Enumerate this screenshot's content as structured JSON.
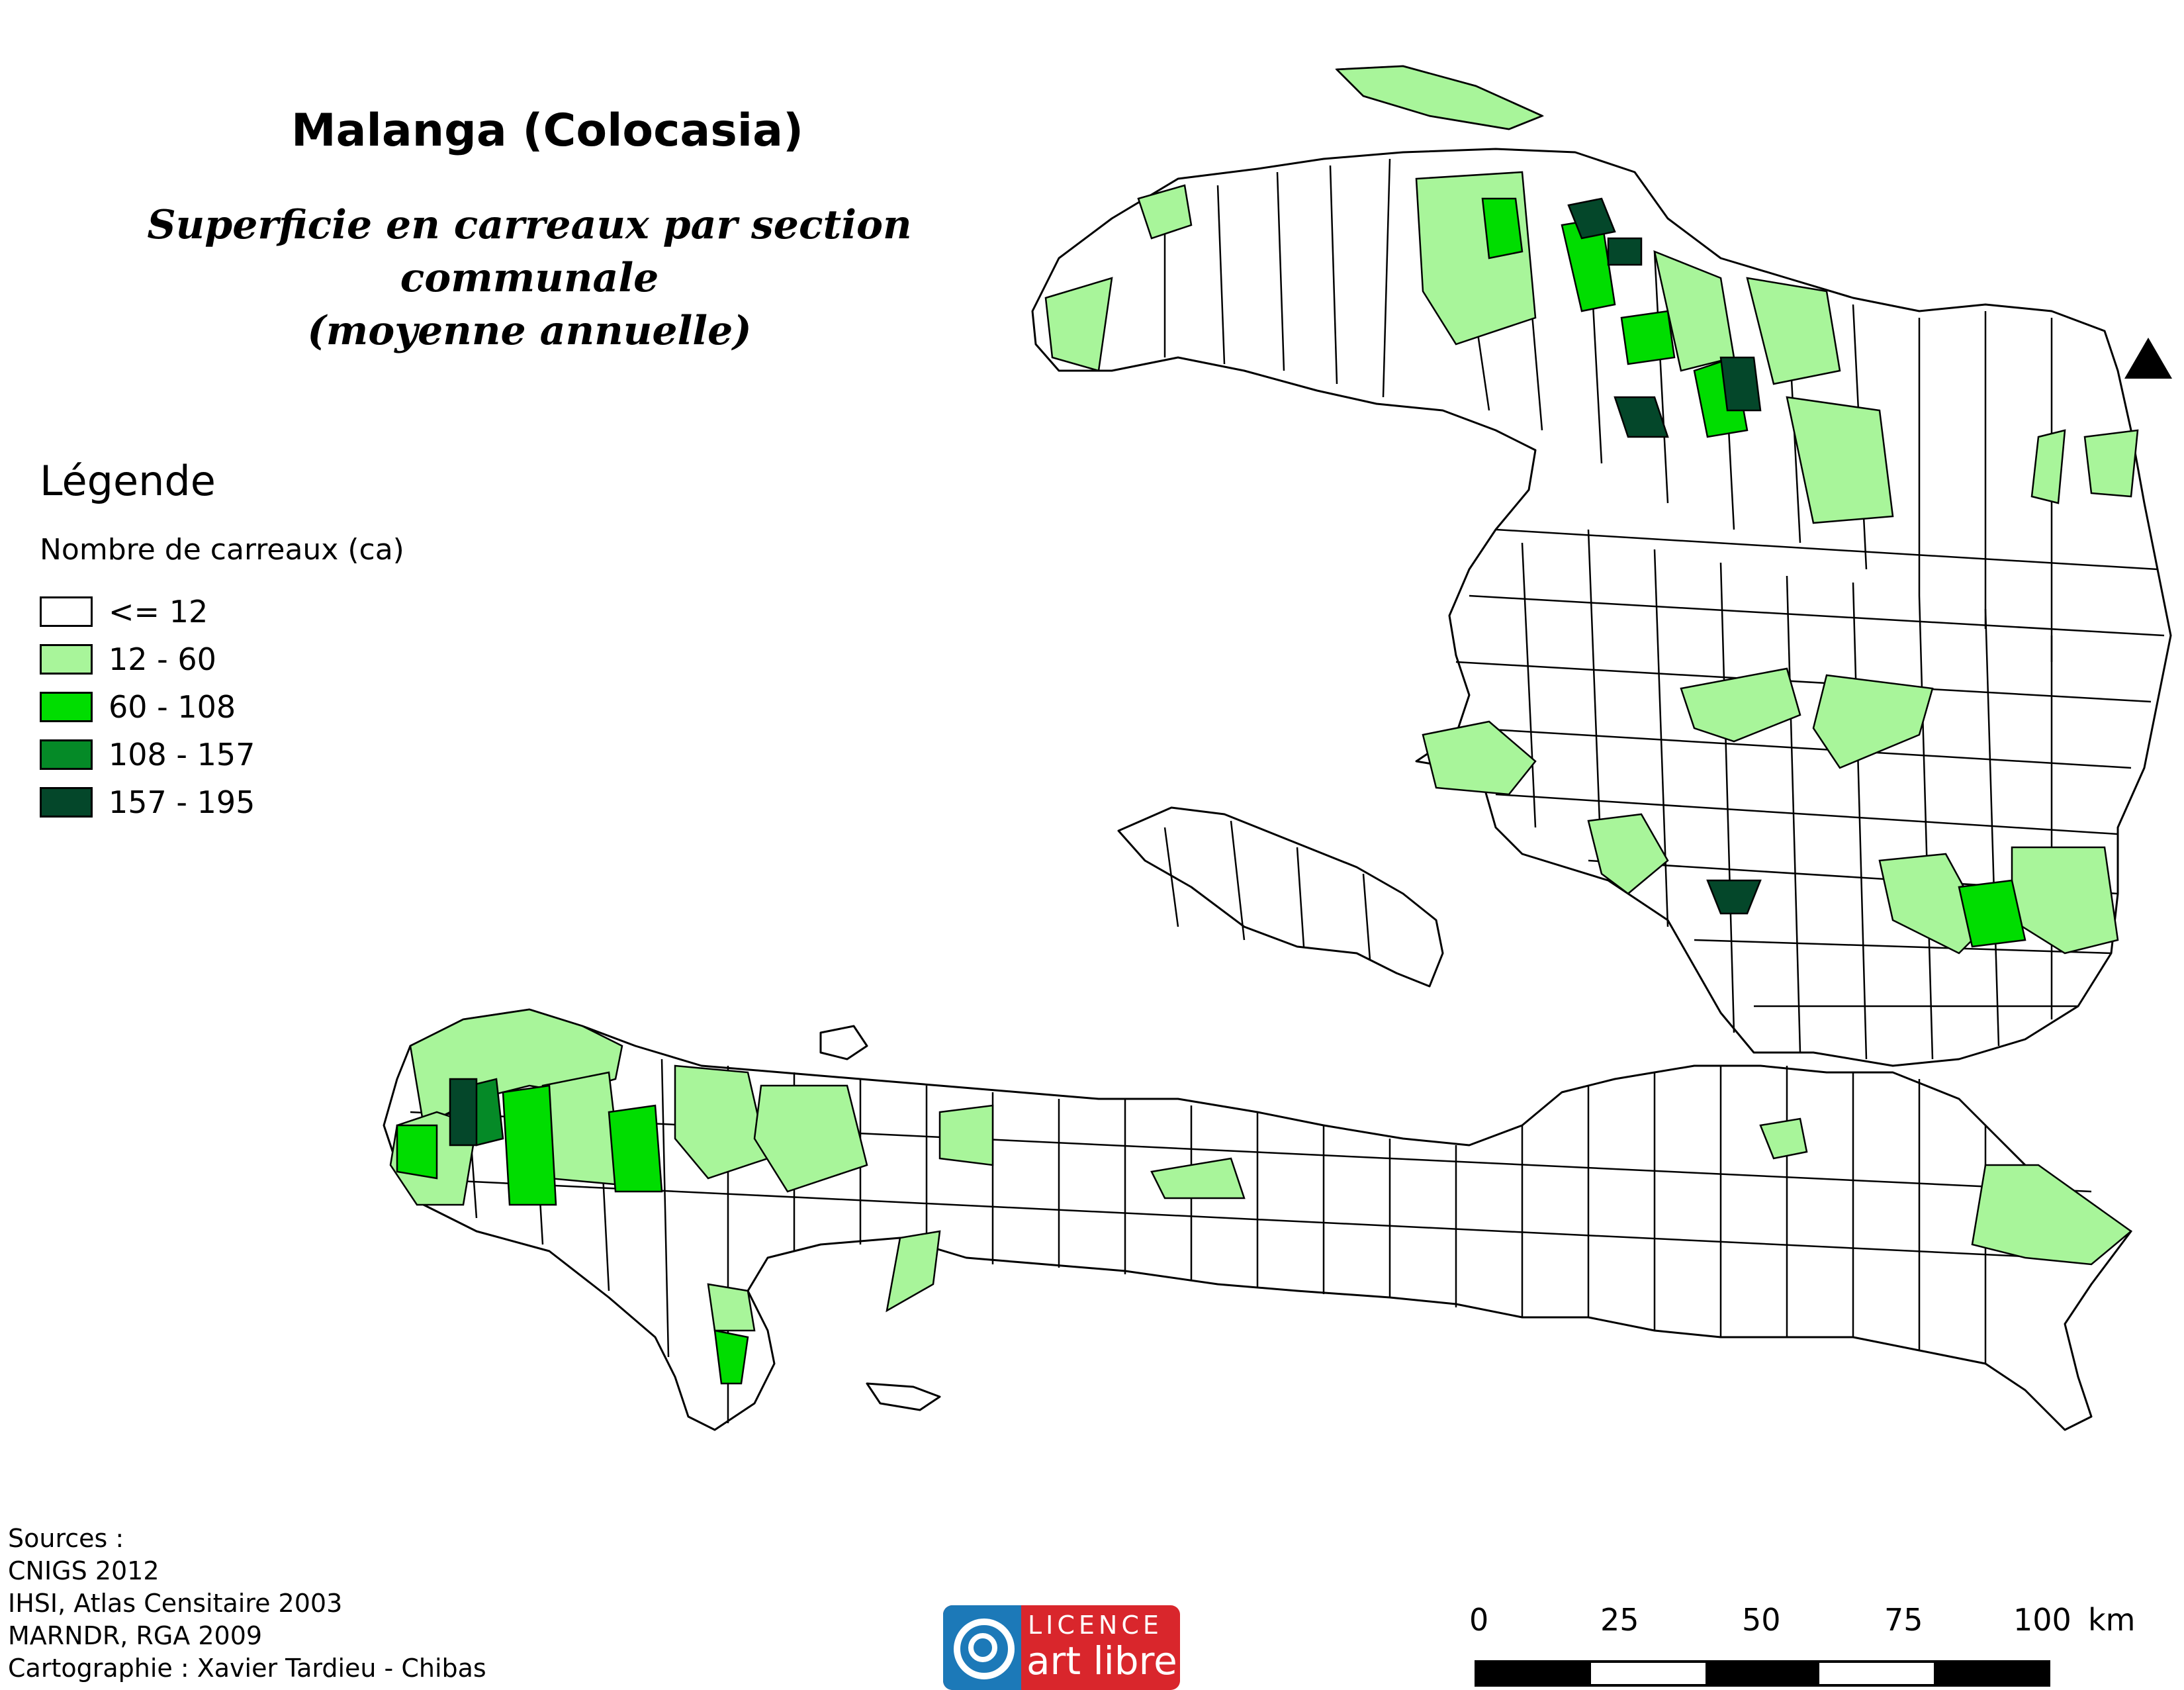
{
  "title": "Malanga (Colocasia)",
  "subtitle_line1": "Superficie en carreaux par section communale",
  "subtitle_line2": "(moyenne annuelle)",
  "legend": {
    "heading": "Légende",
    "subheading": "Nombre de carreaux (ca)",
    "classes": [
      {
        "label": "<= 12",
        "color": "#ffffff"
      },
      {
        "label": "12 - 60",
        "color": "#a8f59a"
      },
      {
        "label": "60 - 108",
        "color": "#00dd00"
      },
      {
        "label": "108 - 157",
        "color": "#058a27"
      },
      {
        "label": "157 - 195",
        "color": "#04472a"
      }
    ]
  },
  "sources": {
    "line1": "Sources :",
    "line2": "CNIGS 2012",
    "line3": "IHSI, Atlas Censitaire 2003",
    "line4": "MARNDR, RGA 2009",
    "line5": "Cartographie : Xavier Tardieu - Chibas"
  },
  "licence": {
    "top": "LICENCE",
    "bottom": "art libre"
  },
  "scale": {
    "ticks": [
      "0",
      "25",
      "50",
      "75",
      "100"
    ],
    "unit": "km"
  },
  "north_arrow": "north-arrow-icon"
}
